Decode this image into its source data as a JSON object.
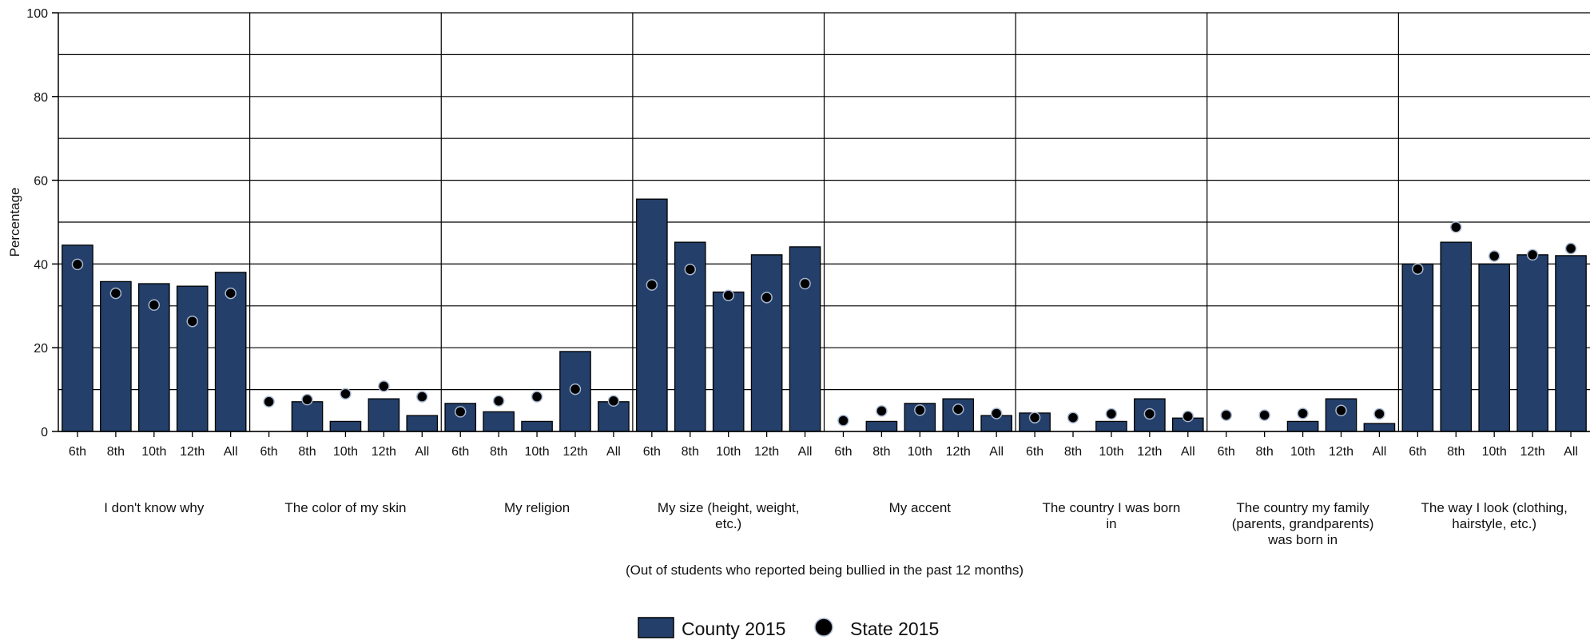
{
  "chart_data": {
    "type": "bar",
    "ylabel": "Percentage",
    "ylim": [
      0,
      100
    ],
    "yticks": [
      0,
      20,
      40,
      60,
      80,
      100
    ],
    "grid": true,
    "legend_position": "bottom-center",
    "note": "(Out of students who reported being bullied in the past 12 months)",
    "subcategories": [
      "6th",
      "8th",
      "10th",
      "12th",
      "All"
    ],
    "groups": [
      {
        "label": [
          "I don't know why"
        ],
        "county": [
          44.5,
          35.8,
          35.3,
          34.7,
          38.0
        ],
        "state": [
          39.9,
          33.0,
          30.2,
          26.3,
          33.0
        ]
      },
      {
        "label": [
          "The color of my skin"
        ],
        "county": [
          0,
          7.1,
          2.4,
          7.8,
          3.8
        ],
        "state": [
          7.1,
          7.6,
          9.0,
          10.8,
          8.3
        ]
      },
      {
        "label": [
          "My religion"
        ],
        "county": [
          6.7,
          4.7,
          2.4,
          19.1,
          7.1
        ],
        "state": [
          4.7,
          7.3,
          8.3,
          10.1,
          7.3
        ]
      },
      {
        "label": [
          "My size (height, weight,",
          "etc.)"
        ],
        "county": [
          55.5,
          45.2,
          33.3,
          42.2,
          44.1
        ],
        "state": [
          35.0,
          38.7,
          32.5,
          32.0,
          35.3
        ]
      },
      {
        "label": [
          "My accent"
        ],
        "county": [
          0,
          2.4,
          6.7,
          7.8,
          3.8
        ],
        "state": [
          2.6,
          4.9,
          5.1,
          5.3,
          4.3
        ]
      },
      {
        "label": [
          "The country I was born",
          "in"
        ],
        "county": [
          4.4,
          0,
          2.4,
          7.8,
          3.2
        ],
        "state": [
          3.3,
          3.3,
          4.2,
          4.2,
          3.6
        ]
      },
      {
        "label": [
          "The country my family",
          "(parents, grandparents)",
          "was born in"
        ],
        "county": [
          0,
          0,
          2.4,
          7.8,
          1.9
        ],
        "state": [
          3.9,
          3.9,
          4.3,
          5.0,
          4.2
        ]
      },
      {
        "label": [
          "The way I look (clothing,",
          "hairstyle, etc.)"
        ],
        "county": [
          40.0,
          45.2,
          40.0,
          42.2,
          42.0
        ],
        "state": [
          38.8,
          48.8,
          41.9,
          42.2,
          43.7
        ]
      }
    ],
    "series": [
      {
        "name": "County 2015",
        "color": "#233f6a",
        "mark": "bar"
      },
      {
        "name": "State 2015",
        "color": "#000000",
        "mark": "dot"
      }
    ]
  }
}
